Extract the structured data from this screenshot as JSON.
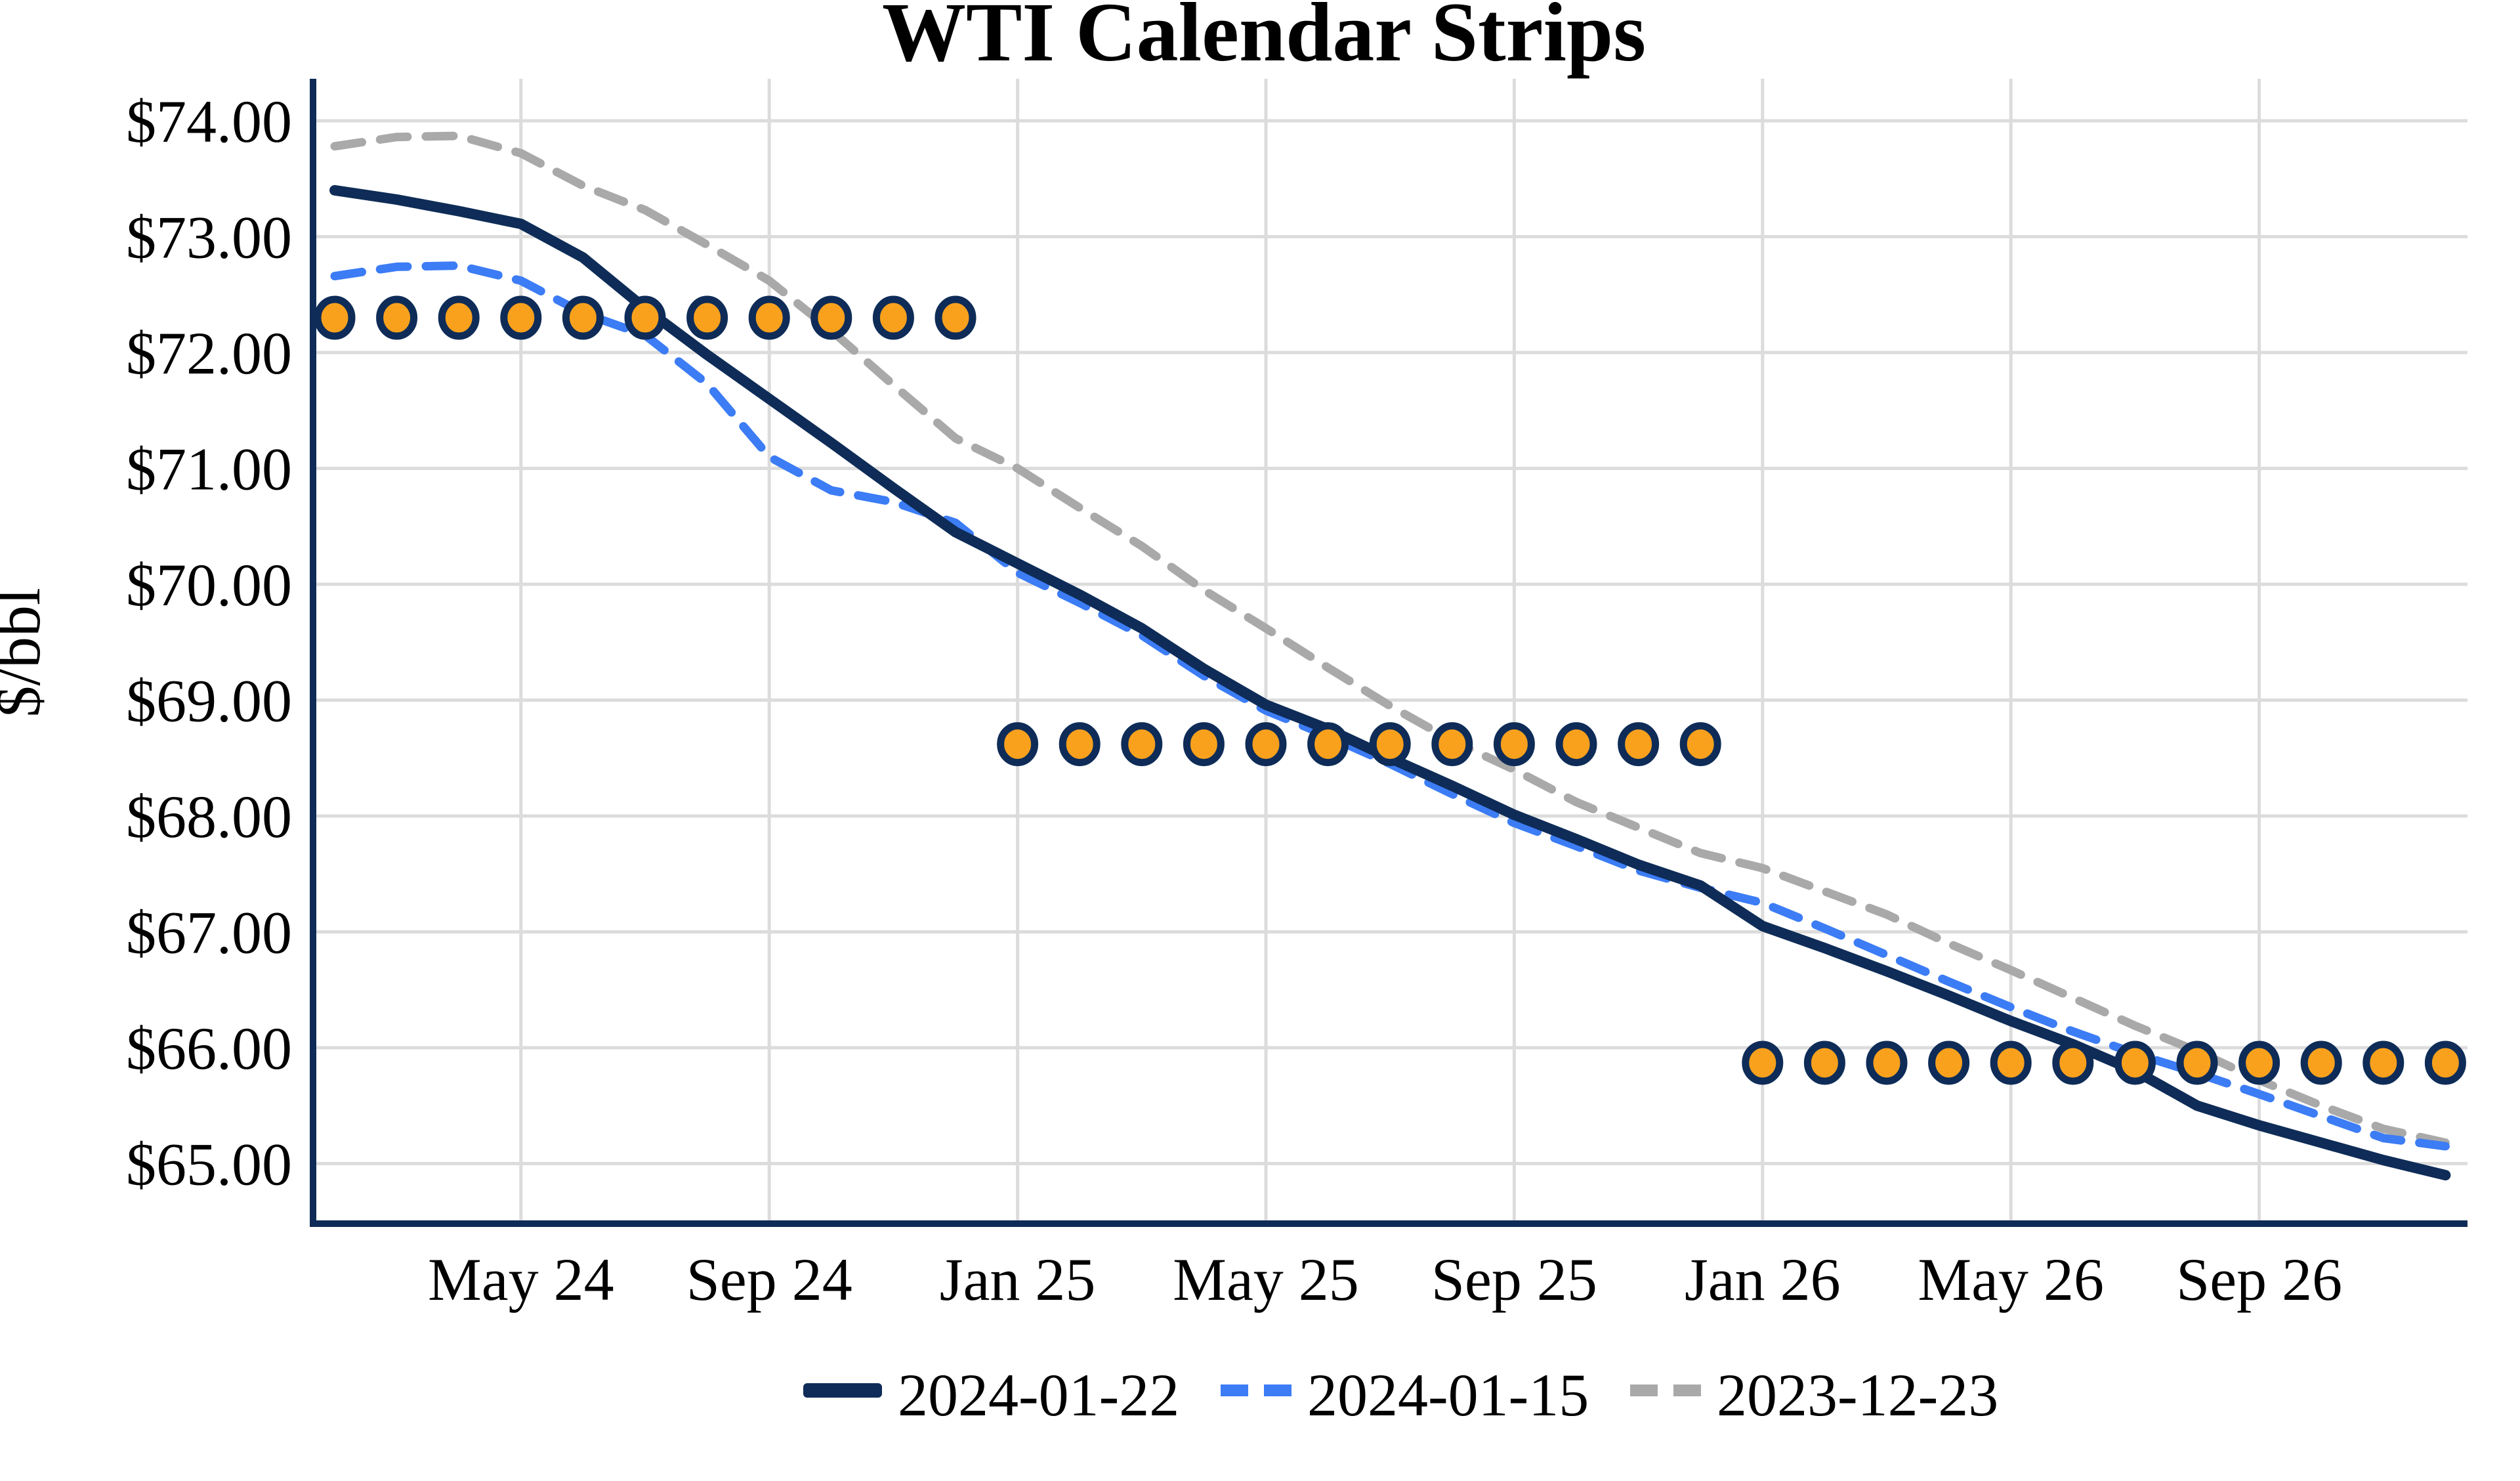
{
  "chart_data": {
    "type": "line",
    "title": "WTI Calendar Strips",
    "ylabel": "$/bbl",
    "grid": true,
    "legend_position": "bottom-center",
    "background_color": "#ffffff",
    "gridline_color": "#dcdcdc",
    "axis_color": "#0e2c57",
    "marker_color": "#f9a11d",
    "marker_outline_color": "#0e2c57",
    "ylim": [
      64.45,
      74.36
    ],
    "y_ticks": [
      {
        "label": "$74.00",
        "value": 74
      },
      {
        "label": "$73.00",
        "value": 73
      },
      {
        "label": "$72.00",
        "value": 72
      },
      {
        "label": "$71.00",
        "value": 71
      },
      {
        "label": "$70.00",
        "value": 70
      },
      {
        "label": "$69.00",
        "value": 69
      },
      {
        "label": "$68.00",
        "value": 68
      },
      {
        "label": "$67.00",
        "value": 67
      },
      {
        "label": "$66.00",
        "value": 66
      },
      {
        "label": "$65.00",
        "value": 65
      }
    ],
    "x_ticks": [
      {
        "label": "May 24",
        "month_index": 3
      },
      {
        "label": "Sep 24",
        "month_index": 7
      },
      {
        "label": "Jan 25",
        "month_index": 11
      },
      {
        "label": "May 25",
        "month_index": 15
      },
      {
        "label": "Sep 25",
        "month_index": 19
      },
      {
        "label": "Jan 26",
        "month_index": 23
      },
      {
        "label": "May 26",
        "month_index": 27
      },
      {
        "label": "Sep 26",
        "month_index": 31
      }
    ],
    "months": [
      "Feb 24",
      "Mar 24",
      "Apr 24",
      "May 24",
      "Jun 24",
      "Jul 24",
      "Aug 24",
      "Sep 24",
      "Oct 24",
      "Nov 24",
      "Dec 24",
      "Jan 25",
      "Feb 25",
      "Mar 25",
      "Apr 25",
      "May 25",
      "Jun 25",
      "Jul 25",
      "Aug 25",
      "Sep 25",
      "Oct 25",
      "Nov 25",
      "Dec 25",
      "Jan 26",
      "Feb 26",
      "Mar 26",
      "Apr 26",
      "May 26",
      "Jun 26",
      "Jul 26",
      "Aug 26",
      "Sep 26",
      "Oct 26",
      "Nov 26",
      "Dec 26"
    ],
    "series": [
      {
        "name": "2023-12-23",
        "color": "#a9a9a9",
        "dash": "dashed",
        "values": [
          73.78,
          73.86,
          73.87,
          73.72,
          73.44,
          73.23,
          72.93,
          72.62,
          72.19,
          71.72,
          71.26,
          71.0,
          70.66,
          70.33,
          69.95,
          69.62,
          69.28,
          68.95,
          68.65,
          68.4,
          68.12,
          67.9,
          67.68,
          67.55,
          67.35,
          67.15,
          66.9,
          66.67,
          66.43,
          66.19,
          65.97,
          65.72,
          65.5,
          65.3,
          65.18
        ]
      },
      {
        "name": "2024-01-15",
        "color": "#3c7cf5",
        "dash": "dashed",
        "values": [
          72.66,
          72.74,
          72.75,
          72.62,
          72.34,
          72.15,
          71.73,
          71.1,
          70.81,
          70.71,
          70.53,
          70.1,
          69.84,
          69.56,
          69.21,
          68.91,
          68.69,
          68.45,
          68.19,
          67.94,
          67.74,
          67.53,
          67.38,
          67.25,
          67.03,
          66.8,
          66.57,
          66.35,
          66.14,
          65.95,
          65.78,
          65.6,
          65.41,
          65.22,
          65.15
        ]
      },
      {
        "name": "2024-01-22",
        "color": "#0e2c57",
        "dash": "solid",
        "values": [
          73.4,
          73.32,
          73.22,
          73.11,
          72.82,
          72.38,
          71.98,
          71.6,
          71.22,
          70.83,
          70.45,
          70.18,
          69.91,
          69.62,
          69.27,
          68.96,
          68.75,
          68.5,
          68.26,
          68.01,
          67.8,
          67.58,
          67.4,
          67.05,
          66.86,
          66.66,
          66.45,
          66.23,
          66.03,
          65.8,
          65.5,
          65.33,
          65.18,
          65.03,
          64.9
        ]
      }
    ],
    "legend": [
      "2024-01-22",
      "2024-01-15",
      "2023-12-23"
    ],
    "strips": [
      {
        "value": 72.3,
        "start_month_index": 0,
        "end_month_index": 10
      },
      {
        "value": 68.62,
        "start_month_index": 11,
        "end_month_index": 22
      },
      {
        "value": 65.87,
        "start_month_index": 23,
        "end_month_index": 34
      }
    ]
  }
}
